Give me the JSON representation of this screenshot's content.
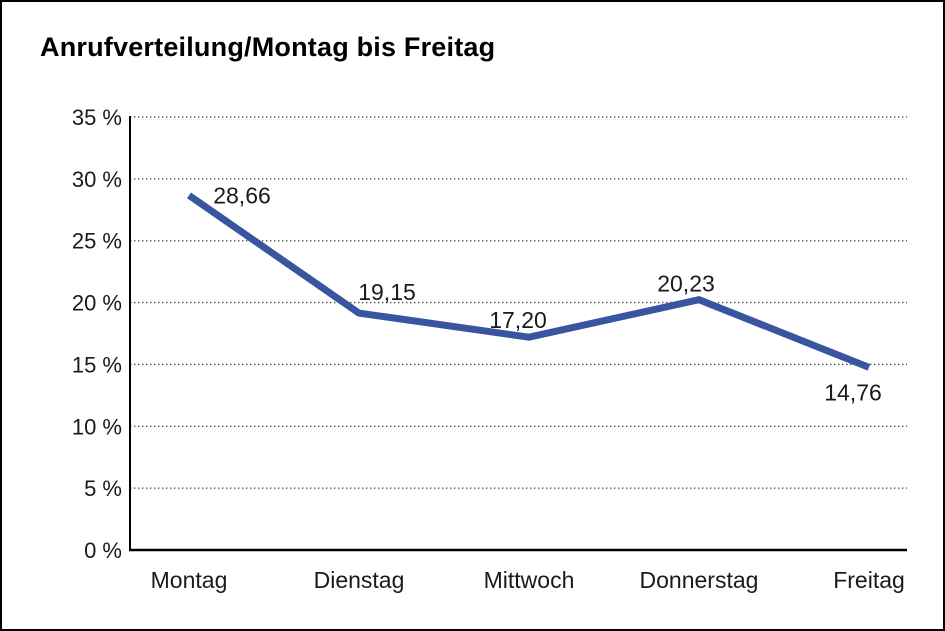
{
  "page": {
    "background_color": "#FFFFFF",
    "frame_border_color": "#000000"
  },
  "chart": {
    "title": "Anrufverteilung/Montag bis Freitag"
  },
  "chart_data": {
    "type": "line",
    "title": "Anrufverteilung/Montag bis Freitag",
    "categories": [
      "Montag",
      "Dienstag",
      "Mittwoch",
      "Donnerstag",
      "Freitag"
    ],
    "values": [
      28.66,
      19.15,
      17.2,
      20.23,
      14.76
    ],
    "data_labels": [
      "28,66",
      "19,15",
      "17,20",
      "20,23",
      "14,76"
    ],
    "xlabel": "",
    "ylabel": "",
    "ylim": [
      0,
      35
    ],
    "ytick_step": 5,
    "ytick_labels": [
      "0 %",
      "5 %",
      "10 %",
      "15 %",
      "20 %",
      "25 %",
      "30 %",
      "35 %"
    ],
    "grid": "horizontal-dotted",
    "legend_position": "none",
    "line_color": "#3A55A0",
    "axis_color": "#000000",
    "grid_color": "#444444",
    "label_color": "#1A1A1A"
  }
}
